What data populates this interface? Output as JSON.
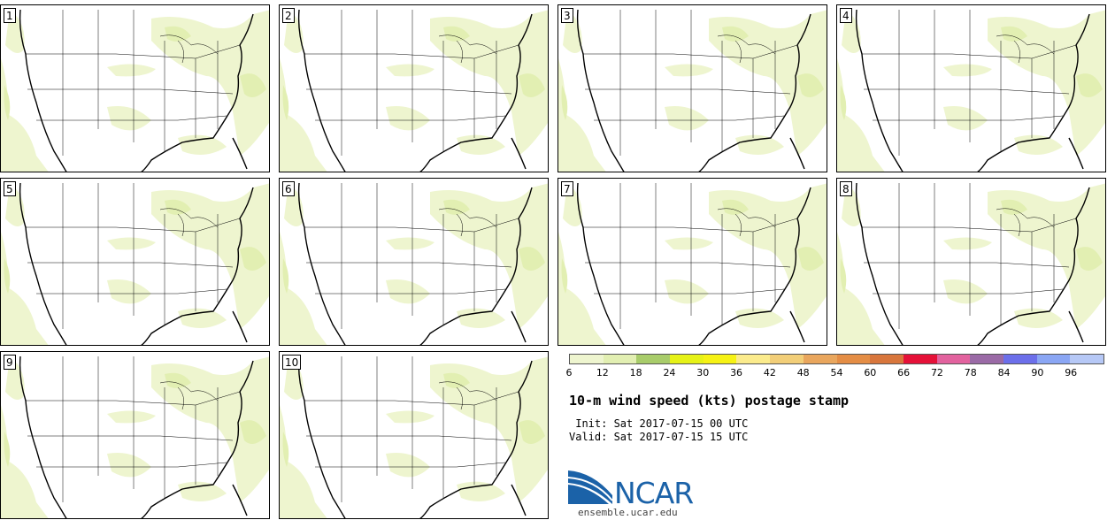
{
  "panels": [
    {
      "label": "1"
    },
    {
      "label": "2"
    },
    {
      "label": "3"
    },
    {
      "label": "4"
    },
    {
      "label": "5"
    },
    {
      "label": "6"
    },
    {
      "label": "7"
    },
    {
      "label": "8"
    },
    {
      "label": "9"
    },
    {
      "label": "10"
    }
  ],
  "colorbar": {
    "ticks": [
      "6",
      "12",
      "18",
      "24",
      "30",
      "36",
      "42",
      "48",
      "54",
      "60",
      "66",
      "72",
      "78",
      "84",
      "90",
      "96"
    ],
    "colors": [
      "#eef5cf",
      "#e2efb2",
      "#a8cc6a",
      "#e6f217",
      "#f6f214",
      "#fbeb8c",
      "#f2ce78",
      "#e9a65d",
      "#e48d45",
      "#d8763c",
      "#e51138",
      "#e2629e",
      "#9a6aa6",
      "#6c6fea",
      "#8aa6f4",
      "#b6c8f6"
    ]
  },
  "title": "10-m wind speed (kts) postage stamp",
  "init": " Init: Sat 2017-07-15 00 UTC",
  "valid": "Valid: Sat 2017-07-15 15 UTC",
  "logo": {
    "text": "NCAR",
    "url": "ensemble.ucar.edu"
  }
}
